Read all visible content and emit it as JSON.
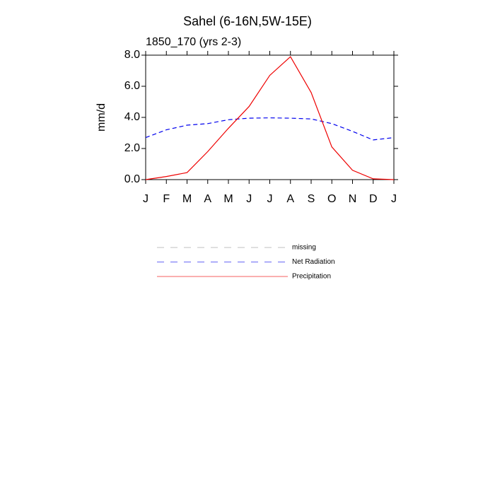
{
  "chart_data": {
    "type": "line",
    "title": "Sahel (6-16N,5W-15E)",
    "subtitle": "1850_170 (yrs 2-3)",
    "y_label": "mm/d",
    "categories": [
      "J",
      "F",
      "M",
      "A",
      "M",
      "J",
      "J",
      "A",
      "S",
      "O",
      "N",
      "D",
      "J"
    ],
    "ylim": [
      0,
      8
    ],
    "yticks": [
      {
        "value": 0,
        "label": "0.0"
      },
      {
        "value": 2,
        "label": "2.0"
      },
      {
        "value": 4,
        "label": "4.0"
      },
      {
        "value": 6,
        "label": "6.0"
      },
      {
        "value": 8,
        "label": "8.0"
      }
    ],
    "series": [
      {
        "name": "missing",
        "color": "#999999",
        "dash": true,
        "values": [
          null,
          null,
          null,
          null,
          null,
          null,
          null,
          null,
          null,
          null,
          null,
          null,
          null
        ]
      },
      {
        "name": "Net Radiation",
        "color": "#0000ee",
        "dash": true,
        "values": [
          2.7,
          3.2,
          3.5,
          3.6,
          3.85,
          3.95,
          3.97,
          3.95,
          3.9,
          3.6,
          3.1,
          2.55,
          2.7
        ]
      },
      {
        "name": "Precipitation",
        "color": "#ee0000",
        "dash": false,
        "values": [
          0.0,
          0.2,
          0.45,
          1.8,
          3.3,
          4.7,
          6.7,
          7.9,
          5.6,
          2.1,
          0.6,
          0.05,
          0.0
        ]
      }
    ]
  }
}
